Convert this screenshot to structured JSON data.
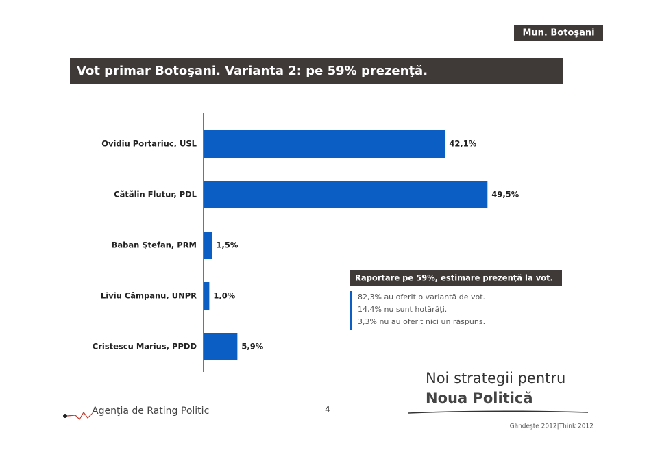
{
  "header": {
    "region": "Mun. Botoşani"
  },
  "chart_data": {
    "type": "bar",
    "orientation": "horizontal",
    "title": "Vot primar Botoşani. Varianta 2: pe 59% prezenţă.",
    "categories": [
      "Ovidiu Portariuc, USL",
      "Cătălin Flutur, PDL",
      "Baban Ştefan, PRM",
      "Liviu Câmpanu, UNPR",
      "Cristescu Marius, PPDD"
    ],
    "values": [
      42.1,
      49.5,
      1.5,
      1.0,
      5.9
    ],
    "value_labels": [
      "42,1%",
      "49,5%",
      "1,5%",
      "1,0%",
      "5,9%"
    ],
    "color": "#0b5ec4"
  },
  "note": {
    "title": "Raportare pe 59%, estimare prezenţă la vot.",
    "lines": [
      "82,3% au oferit o variantă de vot.",
      "14,4% nu sunt hotărâţi.",
      "3,3% nu au oferit nici un răspuns."
    ]
  },
  "footer": {
    "agency": "Agenţia de Rating Politic",
    "page": "4",
    "slogan_1": "Noi strategii pentru",
    "slogan_2": "Noua Politică",
    "tagline": "Gândeşte 2012|Think 2012"
  }
}
